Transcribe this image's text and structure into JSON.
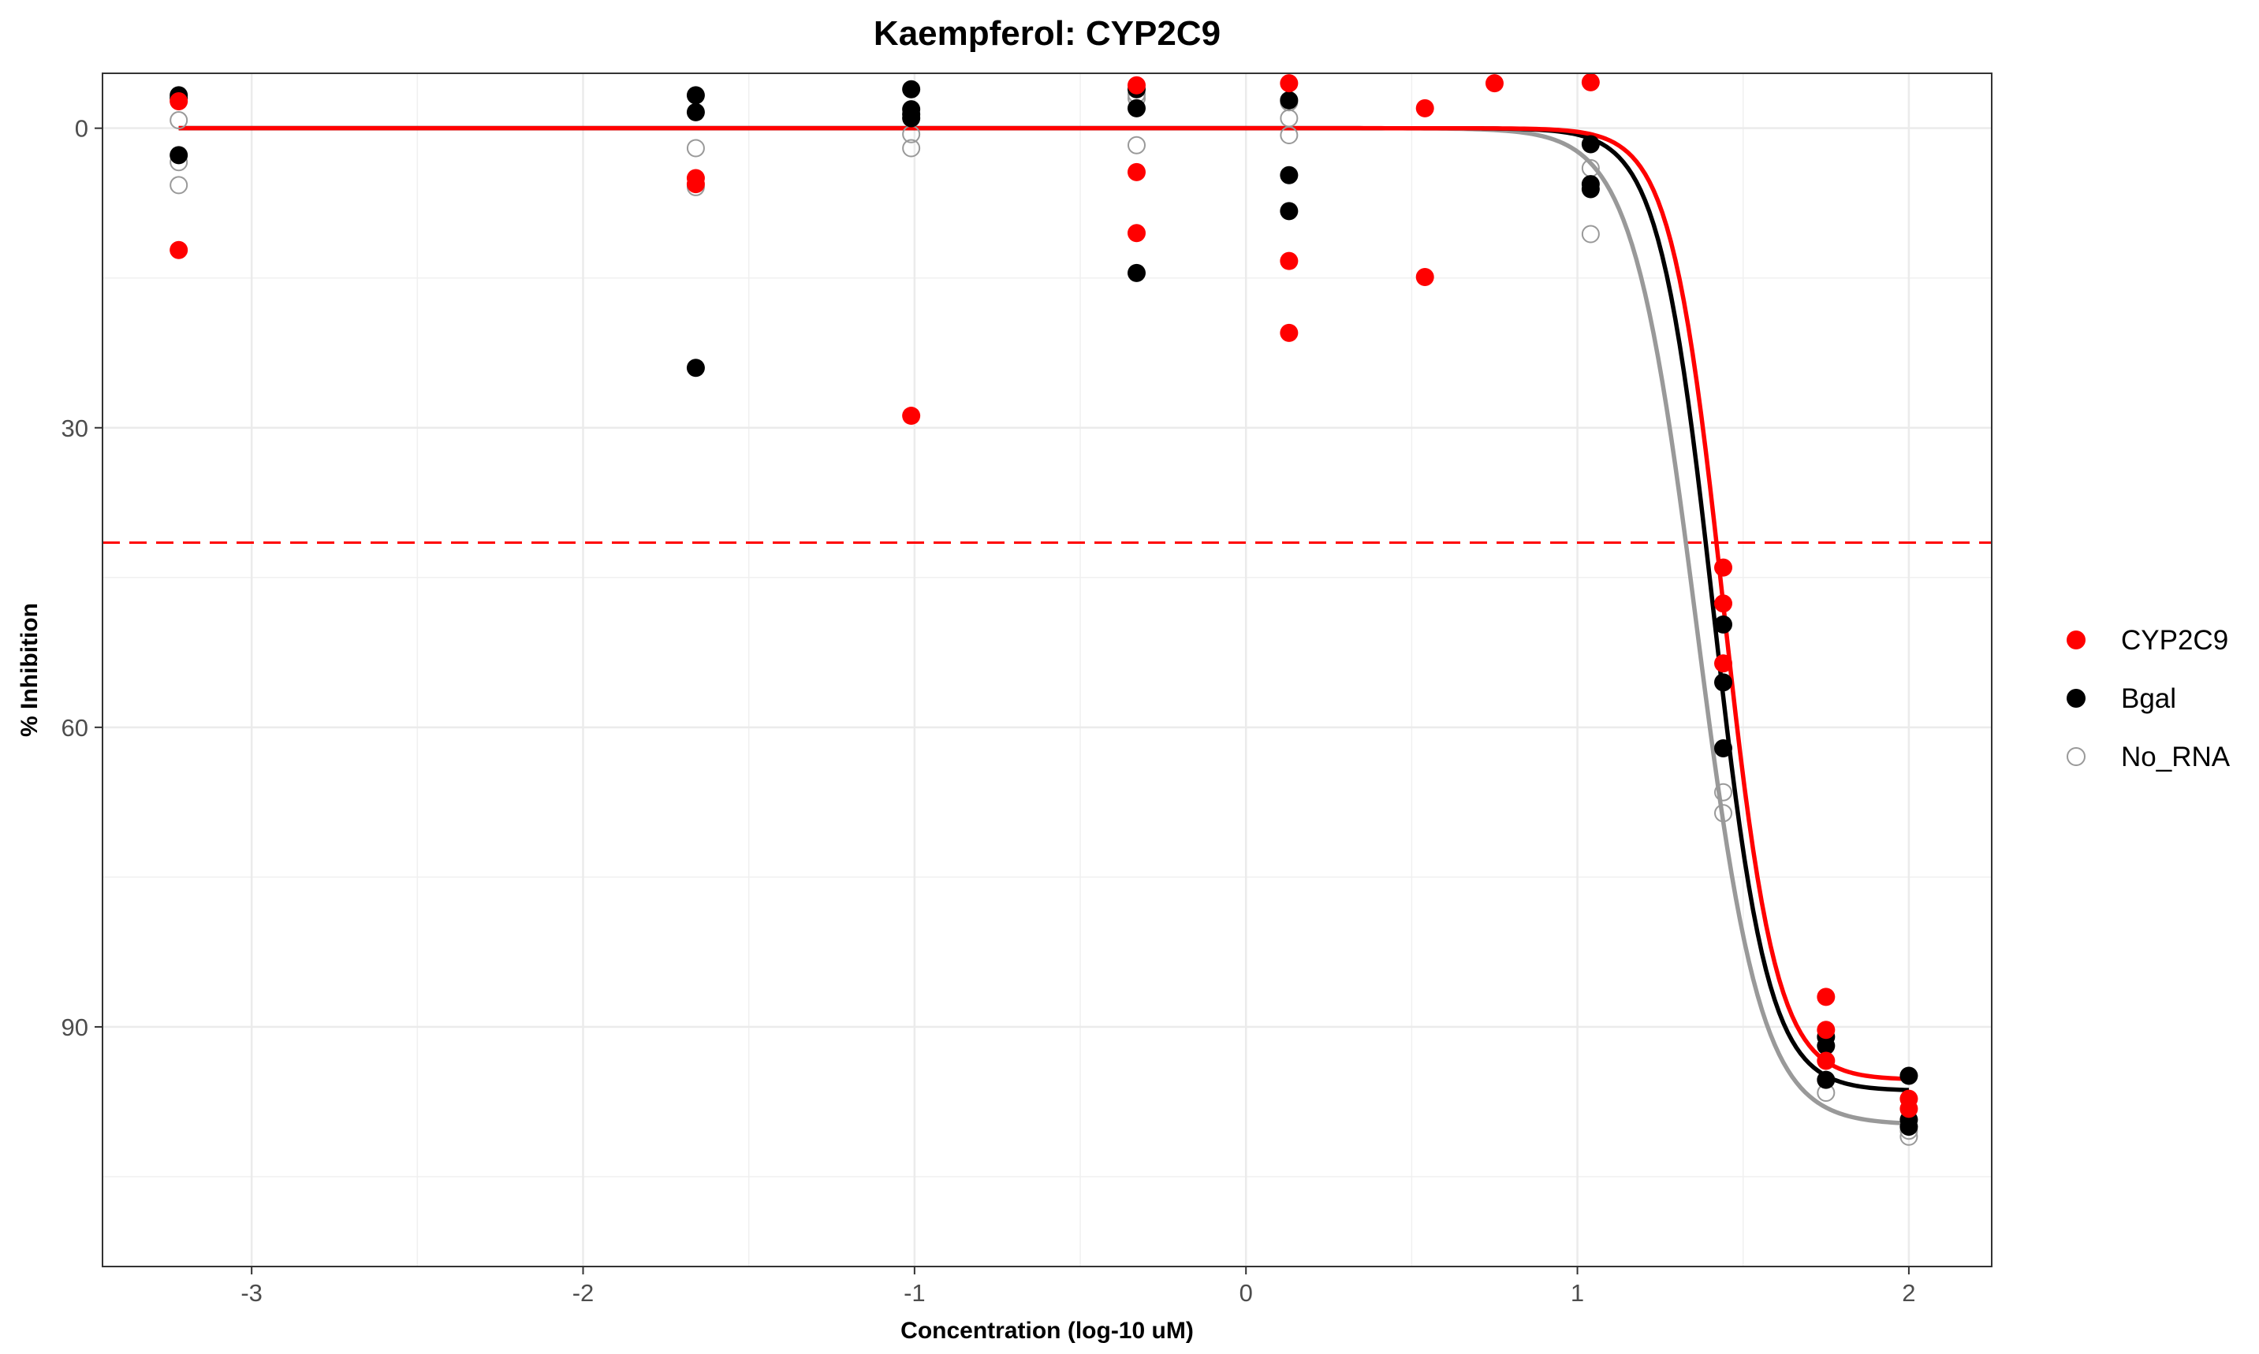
{
  "chart_data": {
    "type": "scatter",
    "title": "Kaempferol: CYP2C9",
    "xlabel": "Concentration (log-10 uM)",
    "ylabel": "% Inhibition",
    "xlim": [
      -3.45,
      2.25
    ],
    "ylim": [
      -5.5,
      114
    ],
    "y_reversed": true,
    "x_ticks": [
      -3,
      -2,
      -1,
      0,
      1,
      2
    ],
    "x_tick_labels": [
      "-3",
      "-2",
      "-1",
      "0",
      "1",
      "2"
    ],
    "y_ticks": [
      0,
      30,
      60,
      90
    ],
    "y_tick_labels": [
      "0",
      "30",
      "60",
      "90"
    ],
    "grid": true,
    "threshold_line": {
      "y": 41.5,
      "color": "#ff0000",
      "style": "dashed"
    },
    "legend_position": "right",
    "series": [
      {
        "name": "CYP2C9",
        "color": "#ff0000",
        "marker": "filled-circle",
        "points": [
          [
            -3.22,
            -2.7
          ],
          [
            -3.22,
            12.2
          ],
          [
            -1.66,
            5.0
          ],
          [
            -1.66,
            5.6
          ],
          [
            -1.01,
            28.8
          ],
          [
            -0.33,
            -4.3
          ],
          [
            -0.33,
            4.4
          ],
          [
            -0.33,
            10.5
          ],
          [
            0.13,
            -4.5
          ],
          [
            0.13,
            13.3
          ],
          [
            0.13,
            20.5
          ],
          [
            0.54,
            -2.0
          ],
          [
            0.54,
            14.9
          ],
          [
            0.75,
            -4.5
          ],
          [
            1.04,
            -4.6
          ],
          [
            1.44,
            44.0
          ],
          [
            1.44,
            47.6
          ],
          [
            1.44,
            53.6
          ],
          [
            1.75,
            87.0
          ],
          [
            1.75,
            90.3
          ],
          [
            1.75,
            93.4
          ],
          [
            2.0,
            97.2
          ],
          [
            2.0,
            98.2
          ]
        ],
        "fit_curve": {
          "bottom": 0,
          "top": 95.3,
          "log_ic50": 1.44,
          "hill_slope": 5.5,
          "x_start": -3.22,
          "x_end": 2.0
        }
      },
      {
        "name": "Bgal",
        "color": "#000000",
        "marker": "filled-circle",
        "points": [
          [
            -3.22,
            -3.3
          ],
          [
            -3.22,
            -3.0
          ],
          [
            -3.22,
            2.7
          ],
          [
            -1.66,
            -3.3
          ],
          [
            -1.66,
            -1.6
          ],
          [
            -1.66,
            24.0
          ],
          [
            -1.01,
            -3.9
          ],
          [
            -1.01,
            -1.9
          ],
          [
            -1.01,
            -1.4
          ],
          [
            -1.01,
            -1.0
          ],
          [
            -0.33,
            -3.9
          ],
          [
            -0.33,
            -2.0
          ],
          [
            -0.33,
            14.5
          ],
          [
            0.13,
            -2.8
          ],
          [
            0.13,
            4.7
          ],
          [
            0.13,
            8.3
          ],
          [
            1.04,
            1.6
          ],
          [
            1.04,
            5.6
          ],
          [
            1.04,
            6.1
          ],
          [
            1.44,
            49.7
          ],
          [
            1.44,
            55.5
          ],
          [
            1.44,
            62.1
          ],
          [
            1.75,
            91.0
          ],
          [
            1.75,
            91.9
          ],
          [
            1.75,
            95.3
          ],
          [
            2.0,
            94.9
          ],
          [
            2.0,
            99.3
          ],
          [
            2.0,
            100.0
          ]
        ],
        "fit_curve": {
          "bottom": 0,
          "top": 96.4,
          "log_ic50": 1.41,
          "hill_slope": 5.3,
          "x_start": -3.22,
          "x_end": 2.0
        }
      },
      {
        "name": "No_RNA",
        "color": "#999999",
        "marker": "open-circle",
        "points": [
          [
            -3.22,
            -0.8
          ],
          [
            -3.22,
            3.4
          ],
          [
            -3.22,
            5.7
          ],
          [
            -1.66,
            2.0
          ],
          [
            -1.66,
            5.9
          ],
          [
            -1.01,
            0.6
          ],
          [
            -1.01,
            2.0
          ],
          [
            -0.33,
            -3.4
          ],
          [
            -0.33,
            -3.0
          ],
          [
            -0.33,
            1.7
          ],
          [
            0.13,
            -2.6
          ],
          [
            0.13,
            -1.0
          ],
          [
            0.13,
            0.7
          ],
          [
            1.04,
            4.0
          ],
          [
            1.04,
            10.6
          ],
          [
            1.44,
            66.5
          ],
          [
            1.44,
            68.6
          ],
          [
            1.75,
            96.6
          ],
          [
            2.0,
            100.4
          ],
          [
            2.0,
            101.0
          ]
        ],
        "fit_curve": {
          "bottom": 0,
          "top": 99.8,
          "log_ic50": 1.36,
          "hill_slope": 4.5,
          "x_start": -3.22,
          "x_end": 2.0
        }
      }
    ]
  }
}
